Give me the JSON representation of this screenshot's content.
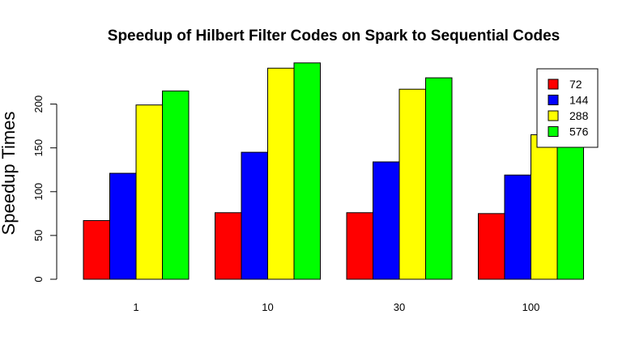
{
  "chart_data": {
    "type": "bar",
    "title": "Speedup of Hilbert Filter Codes on Spark to Sequential Codes",
    "xlabel": "",
    "ylabel": "Speedup Times",
    "categories": [
      "1",
      "10",
      "30",
      "100"
    ],
    "series": [
      {
        "name": "72",
        "color": "#ff0000",
        "values": [
          67,
          76,
          76,
          75
        ]
      },
      {
        "name": "144",
        "color": "#0000ff",
        "values": [
          121,
          145,
          134,
          119
        ]
      },
      {
        "name": "288",
        "color": "#ffff00",
        "values": [
          199,
          241,
          217,
          165
        ]
      },
      {
        "name": "576",
        "color": "#00ff00",
        "values": [
          215,
          247,
          230,
          170
        ]
      }
    ],
    "yticks": [
      0,
      50,
      100,
      150,
      200
    ],
    "ylim": [
      0,
      247
    ],
    "grid": false,
    "legend_position": "top-right"
  }
}
